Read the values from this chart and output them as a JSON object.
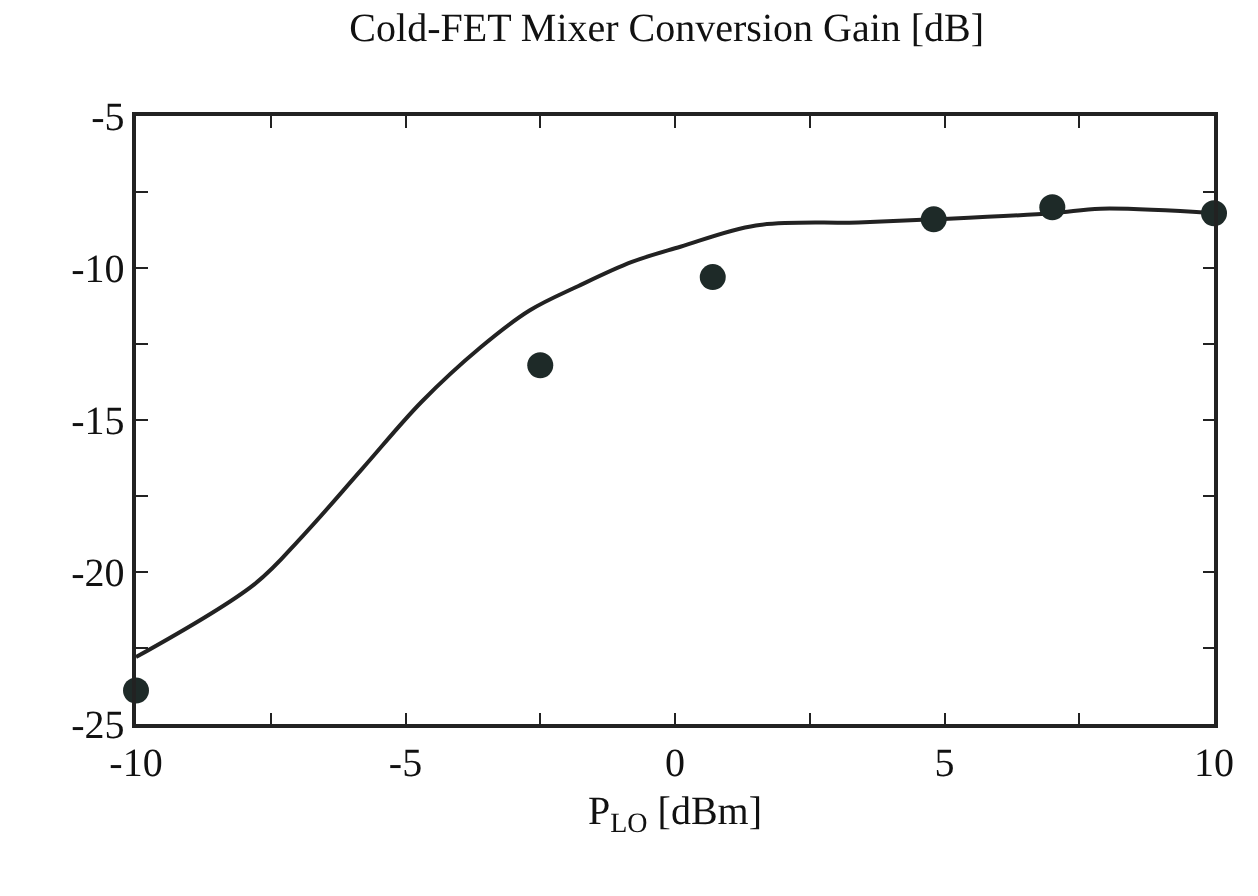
{
  "chart_data": {
    "type": "line",
    "title": "Cold-FET Mixer Conversion Gain [dB]",
    "xlabel": "P$_{LO}$ [dBm]",
    "xlim": [
      -10,
      10
    ],
    "ylim": [
      -25,
      -5
    ],
    "xticks": [
      -10,
      {
        "value": -7.5,
        "label": null
      },
      -5,
      {
        "value": -2.5,
        "label": null
      },
      0,
      {
        "value": 2.5,
        "label": null
      },
      5,
      {
        "value": 7.5,
        "label": null
      },
      10
    ],
    "yticks": [
      -25,
      {
        "value": -22.5,
        "label": null
      },
      -20,
      {
        "value": -17.5,
        "label": null
      },
      -15,
      {
        "value": -12.5,
        "label": null
      },
      -10,
      {
        "value": -7.5,
        "label": null
      },
      -5
    ],
    "series": [
      {
        "color": "#222222",
        "marker": "none",
        "line_style": "solid",
        "x": [
          -10,
          -7.8,
          -6.9,
          -5.8,
          -4.7,
          -3.6,
          -2.7,
          -1.8,
          -0.8,
          0.1,
          1.5,
          3.4,
          4.8,
          7.0,
          7.9,
          10
        ],
        "values": [
          -22.8,
          -20.4,
          -18.8,
          -16.6,
          -14.4,
          -12.6,
          -11.4,
          -10.6,
          -9.8,
          -9.3,
          -8.6,
          -8.5,
          -8.4,
          -8.2,
          -8.05,
          -8.2
        ]
      },
      {
        "type": "scatter",
        "color": "#1e2a28",
        "marker": "circle",
        "x": [
          -10,
          -2.5,
          0.7,
          4.8,
          7.0,
          10
        ],
        "values": [
          -23.9,
          -13.2,
          -10.3,
          -8.4,
          -8.0,
          -8.2
        ]
      }
    ]
  }
}
